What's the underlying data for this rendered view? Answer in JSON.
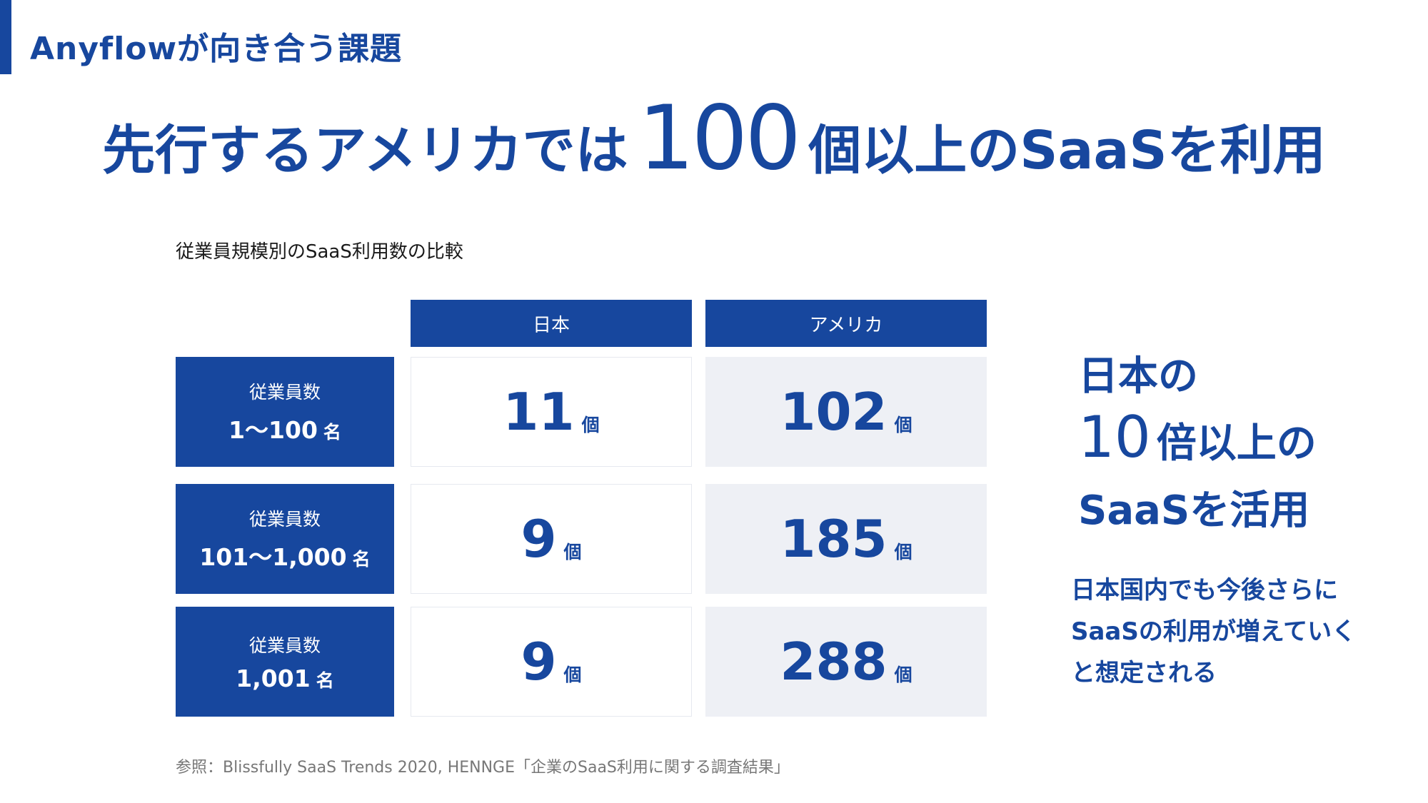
{
  "section_title": "Anyflowが向き合う課題",
  "headline": {
    "before": "先行するアメリカでは",
    "number": "100",
    "after": "個以上のSaaSを利用"
  },
  "chart_caption": "従業員規模別のSaaS利用数の比較",
  "table": {
    "columns": [
      "日本",
      "アメリカ"
    ],
    "rows": [
      {
        "label": "従業員数",
        "range": "1〜100",
        "unit": "名",
        "japan": "11",
        "usa": "102",
        "cell_unit": "個"
      },
      {
        "label": "従業員数",
        "range": "101〜1,000",
        "unit": "名",
        "japan": "9",
        "usa": "185",
        "cell_unit": "個"
      },
      {
        "label": "従業員数",
        "range": "1,001",
        "unit": "名",
        "japan": "9",
        "usa": "288",
        "cell_unit": "個"
      }
    ]
  },
  "side": {
    "line1": "日本の",
    "line2_number": "10",
    "line2_text": "倍以上の",
    "line3": "SaaSを活用",
    "note_lines": [
      "日本国内でも今後さらに",
      "SaaSの利用が増えていく",
      "と想定される"
    ]
  },
  "reference": "参照：Blissfully SaaS Trends 2020, HENNGE「企業のSaaS利用に関する調査結果」",
  "colors": {
    "brand": "#17479e",
    "cell_alt": "#eef0f5"
  }
}
